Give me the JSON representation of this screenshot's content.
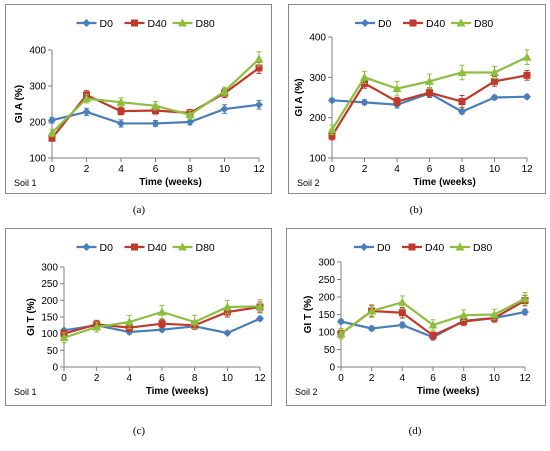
{
  "colors": {
    "D0": "#4a7ebb",
    "D40": "#c0392b",
    "D80": "#8cbf3f"
  },
  "chart_data": [
    {
      "type": "line",
      "caption": "(a)",
      "soil_label": "Soil 1",
      "xlabel": "Time (weeks)",
      "ylabel": "GI A (%)",
      "x": [
        0,
        2,
        4,
        6,
        8,
        10,
        12
      ],
      "xticks": [
        "0",
        "2",
        "4",
        "6",
        "8",
        "10",
        "12"
      ],
      "ylim": [
        100,
        400
      ],
      "yticks": [
        "100",
        "200",
        "300",
        "400"
      ],
      "legend": "top-center",
      "grid": false,
      "series": [
        {
          "name": "D0",
          "marker": "diamond",
          "values": [
            205,
            228,
            196,
            196,
            200,
            236,
            248
          ],
          "errors": [
            8,
            10,
            10,
            8,
            8,
            12,
            12
          ]
        },
        {
          "name": "D40",
          "marker": "square",
          "values": [
            155,
            275,
            230,
            232,
            225,
            280,
            350
          ],
          "errors": [
            8,
            12,
            10,
            10,
            10,
            12,
            15
          ]
        },
        {
          "name": "D80",
          "marker": "triangle",
          "values": [
            170,
            265,
            255,
            245,
            220,
            285,
            375
          ],
          "errors": [
            10,
            12,
            12,
            12,
            12,
            12,
            20
          ]
        }
      ]
    },
    {
      "type": "line",
      "caption": "(b)",
      "soil_label": "Soil 2",
      "xlabel": "Time (weeks)",
      "ylabel": "GI A (%)",
      "x": [
        0,
        2,
        4,
        6,
        8,
        10,
        12
      ],
      "xticks": [
        "0",
        "2",
        "4",
        "6",
        "8",
        "10",
        "12"
      ],
      "ylim": [
        100,
        400
      ],
      "yticks": [
        "100",
        "200",
        "300",
        "400"
      ],
      "legend": "top-center",
      "grid": false,
      "series": [
        {
          "name": "D0",
          "marker": "diamond",
          "values": [
            243,
            238,
            232,
            260,
            215,
            250,
            252
          ],
          "errors": [
            5,
            6,
            8,
            8,
            6,
            5,
            5
          ]
        },
        {
          "name": "D40",
          "marker": "square",
          "values": [
            155,
            285,
            240,
            262,
            240,
            290,
            305
          ],
          "errors": [
            10,
            12,
            10,
            12,
            15,
            12,
            12
          ]
        },
        {
          "name": "D80",
          "marker": "triangle",
          "values": [
            170,
            300,
            272,
            290,
            312,
            312,
            350
          ],
          "errors": [
            12,
            15,
            18,
            18,
            18,
            15,
            18
          ]
        }
      ]
    },
    {
      "type": "line",
      "caption": "(c)",
      "soil_label": "Soil 1",
      "xlabel": "Time (weeks)",
      "ylabel": "GI T (%)",
      "x": [
        0,
        2,
        4,
        6,
        8,
        10,
        12
      ],
      "xticks": [
        "0",
        "2",
        "4",
        "6",
        "8",
        "10",
        "12"
      ],
      "ylim": [
        0,
        300
      ],
      "yticks": [
        "0",
        "50",
        "100",
        "150",
        "200",
        "250",
        "300"
      ],
      "legend": "top-center",
      "grid": false,
      "series": [
        {
          "name": "D0",
          "marker": "diamond",
          "values": [
            110,
            125,
            105,
            112,
            122,
            102,
            145
          ],
          "errors": [
            5,
            8,
            6,
            6,
            6,
            5,
            6
          ]
        },
        {
          "name": "D40",
          "marker": "square",
          "values": [
            100,
            128,
            118,
            130,
            125,
            165,
            180
          ],
          "errors": [
            10,
            12,
            12,
            12,
            12,
            15,
            15
          ]
        },
        {
          "name": "D80",
          "marker": "triangle",
          "values": [
            88,
            120,
            135,
            165,
            135,
            180,
            182
          ],
          "errors": [
            15,
            15,
            20,
            20,
            20,
            20,
            20
          ]
        }
      ]
    },
    {
      "type": "line",
      "caption": "(d)",
      "soil_label": "Soil 2",
      "xlabel": "Time (weeks)",
      "ylabel": "GI T (%)",
      "x": [
        0,
        2,
        4,
        6,
        8,
        10,
        12
      ],
      "xticks": [
        "0",
        "2",
        "4",
        "6",
        "8",
        "10",
        "12"
      ],
      "ylim": [
        0,
        300
      ],
      "yticks": [
        "0",
        "50",
        "100",
        "150",
        "200",
        "250",
        "300"
      ],
      "legend": "top-center",
      "grid": false,
      "series": [
        {
          "name": "D0",
          "marker": "diamond",
          "values": [
            130,
            110,
            120,
            85,
            132,
            140,
            157
          ],
          "errors": [
            6,
            6,
            8,
            8,
            8,
            8,
            8
          ]
        },
        {
          "name": "D40",
          "marker": "square",
          "values": [
            95,
            160,
            155,
            90,
            130,
            140,
            190
          ],
          "errors": [
            10,
            15,
            15,
            10,
            12,
            12,
            15
          ]
        },
        {
          "name": "D80",
          "marker": "triangle",
          "values": [
            95,
            160,
            185,
            120,
            148,
            150,
            195
          ],
          "errors": [
            15,
            18,
            18,
            15,
            15,
            15,
            18
          ]
        }
      ]
    }
  ]
}
